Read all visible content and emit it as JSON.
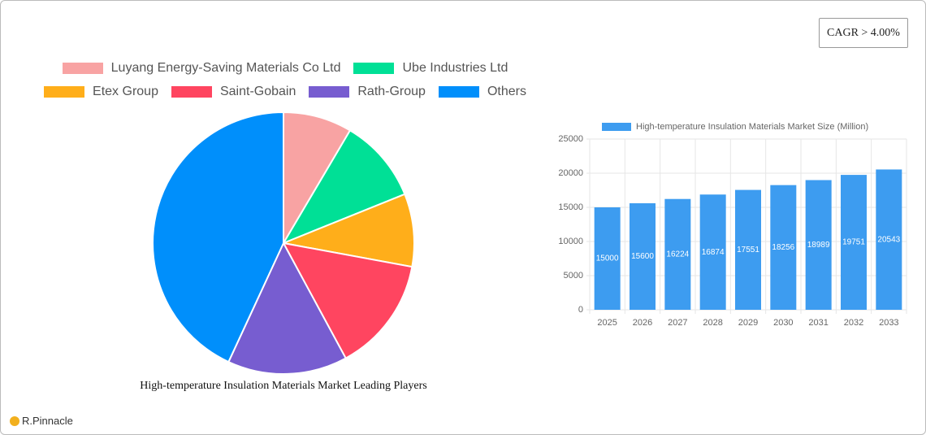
{
  "chart_data": [
    {
      "type": "pie",
      "title": "High-temperature Insulation Materials Market Leading Players",
      "categories": [
        "Luyang Energy-Saving Materials Co  Ltd",
        "Ube Industries Ltd",
        "Etex Group",
        "Saint-Gobain",
        "Rath-Group",
        "Others"
      ],
      "values": [
        8.5,
        10.4,
        9,
        14.2,
        14.8,
        43.1
      ],
      "colors": [
        "#f8a3a3",
        "#00e096",
        "#ffae1a",
        "#ff4560",
        "#775dd0",
        "#008ffb"
      ]
    },
    {
      "type": "bar",
      "categories": [
        "2025",
        "2026",
        "2027",
        "2028",
        "2029",
        "2030",
        "2031",
        "2032",
        "2033"
      ],
      "series": [
        {
          "name": "High-temperature Insulation Materials Market Size (Million)",
          "color": "#3d9cf0",
          "values": [
            15000,
            15600,
            16224,
            16874,
            17551,
            18256,
            18989,
            19751,
            20543
          ]
        }
      ],
      "ylim": [
        0,
        25000
      ],
      "yticks": [
        0,
        5000,
        10000,
        15000,
        20000,
        25000
      ],
      "grid": true
    }
  ],
  "badge": "CAGR > 4.00%",
  "logo": "R.Pinnacle"
}
